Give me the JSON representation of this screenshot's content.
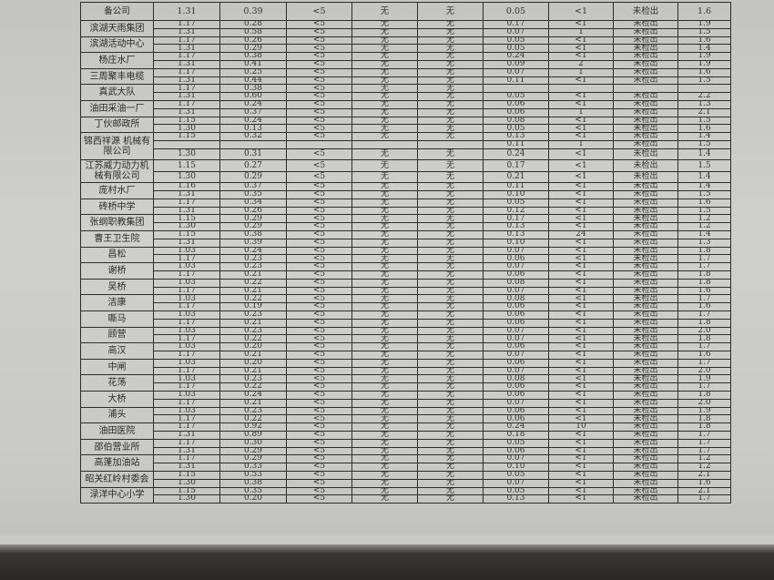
{
  "groups": [
    {
      "name": "备公司",
      "rows": [
        [
          "1.31",
          "0.39",
          "<5",
          "无",
          "无",
          "0.05",
          "<1",
          "未检出",
          "1.6"
        ]
      ],
      "head": true
    },
    {
      "name": "滨湖天雨集团",
      "rows": [
        [
          "1.17",
          "0.28",
          "<5",
          "无",
          "无",
          "0.17",
          "<1",
          "未检出",
          "1.9"
        ],
        [
          "1.31",
          "0.58",
          "<5",
          "无",
          "无",
          "0.07",
          "1",
          "未检出",
          "1.5"
        ]
      ]
    },
    {
      "name": "滨湖活动中心",
      "rows": [
        [
          "1.17",
          "0.26",
          "<5",
          "无",
          "无",
          "0.05",
          "<1",
          "未检出",
          "1.6"
        ],
        [
          "1.31",
          "0.29",
          "<5",
          "无",
          "无",
          "0.05",
          "<1",
          "未检出",
          "1.4"
        ]
      ]
    },
    {
      "name": "杨庄水厂",
      "rows": [
        [
          "1.17",
          "0.38",
          "<5",
          "无",
          "无",
          "0.24",
          "<1",
          "未检出",
          "1.9"
        ],
        [
          "1.31",
          "0.41",
          "<5",
          "无",
          "无",
          "0.09",
          "2",
          "未检出",
          "1.9"
        ]
      ]
    },
    {
      "name": "三周聚丰电缆",
      "rows": [
        [
          "1.17",
          "0.25",
          "<5",
          "无",
          "无",
          "0.07",
          "1",
          "未检出",
          "1.6"
        ],
        [
          "1.31",
          "0.44",
          "<5",
          "无",
          "无",
          "0.11",
          "<1",
          "未检出",
          "1.5"
        ]
      ]
    },
    {
      "name": "真武大队",
      "rows": [
        [
          "1.17",
          "0.38",
          "<5",
          "无",
          "无",
          "",
          "",
          "",
          ""
        ],
        [
          "1.31",
          "0.60",
          "<5",
          "无",
          "无",
          "0.05",
          "<1",
          "未检出",
          "2.2"
        ]
      ]
    },
    {
      "name": "油田采油一厂",
      "rows": [
        [
          "1.17",
          "0.24",
          "<5",
          "无",
          "无",
          "0.06",
          "<1",
          "未检出",
          "1.3"
        ],
        [
          "1.31",
          "0.37",
          "<5",
          "无",
          "无",
          "0.06",
          "1",
          "未检出",
          "2.1"
        ]
      ]
    },
    {
      "name": "丁伙邮政所",
      "rows": [
        [
          "1.15",
          "0.24",
          "<5",
          "无",
          "无",
          "0.08",
          "<1",
          "未检出",
          "1.5"
        ],
        [
          "1.30",
          "0.13",
          "<5",
          "无",
          "无",
          "0.05",
          "<1",
          "未检出",
          "1.6"
        ]
      ]
    },
    {
      "name": "锦西祥源 机械有限公司",
      "rows": [
        [
          "1.15",
          "0.32",
          "<5",
          "无",
          "无",
          "0.13",
          "<1",
          "未检出",
          "1.4"
        ],
        [
          "",
          "",
          "",
          "",
          "",
          "0.11",
          "1",
          "未检出",
          "1.5"
        ],
        [
          "1.30",
          "0.31",
          "<5",
          "无",
          "无",
          "0.24",
          "<1",
          "未检出",
          "1.4"
        ]
      ],
      "tall": [
        2
      ]
    },
    {
      "name": "江苏威力动力机械有限公司",
      "rows": [
        [
          "1.15",
          "0.27",
          "<5",
          "无",
          "无",
          "0.17",
          "<1",
          "未检出",
          "1.5"
        ],
        [
          "1.30",
          "0.29",
          "<5",
          "无",
          "无",
          "0.21",
          "<1",
          "未检出",
          "1.4"
        ]
      ],
      "tall": [
        0,
        1
      ]
    },
    {
      "name": "庞村水厂",
      "rows": [
        [
          "1.16",
          "0.37",
          "<5",
          "无",
          "无",
          "0.11",
          "<1",
          "未检出",
          "1.4"
        ],
        [
          "1.31",
          "0.35",
          "<5",
          "无",
          "无",
          "0.10",
          "<1",
          "未检出",
          "1.5"
        ]
      ]
    },
    {
      "name": "砖桥中学",
      "rows": [
        [
          "1.17",
          "0.34",
          "<5",
          "无",
          "无",
          "0.05",
          "<1",
          "未检出",
          "1.6"
        ],
        [
          "1.31",
          "0.26",
          "<5",
          "无",
          "无",
          "0.12",
          "<1",
          "未检出",
          "1.5"
        ]
      ]
    },
    {
      "name": "张纲职教集团",
      "rows": [
        [
          "1.15",
          "0.29",
          "<5",
          "无",
          "无",
          "0.17",
          "<1",
          "未检出",
          "1.2"
        ],
        [
          "1.30",
          "0.29",
          "<5",
          "无",
          "无",
          "0.13",
          "<1",
          "未检出",
          "1.2"
        ]
      ]
    },
    {
      "name": "曹王卫生院",
      "rows": [
        [
          "1.15",
          "0.38",
          "<5",
          "无",
          "无",
          "0.13",
          "24",
          "未检出",
          "1.4"
        ],
        [
          "1.31",
          "0.39",
          "<5",
          "无",
          "无",
          "0.10",
          "<1",
          "未检出",
          "1.3"
        ]
      ]
    },
    {
      "name": "昌松",
      "rows": [
        [
          "1.03",
          "0.24",
          "<5",
          "无",
          "无",
          "0.07",
          "<1",
          "未检出",
          "1.8"
        ],
        [
          "1.17",
          "0.23",
          "<5",
          "无",
          "无",
          "0.06",
          "<1",
          "未检出",
          "1.7"
        ]
      ]
    },
    {
      "name": "谢桥",
      "rows": [
        [
          "1.03",
          "0.23",
          "<5",
          "无",
          "无",
          "0.07",
          "<1",
          "未检出",
          "1.7"
        ],
        [
          "1.17",
          "0.21",
          "<5",
          "无",
          "无",
          "0.06",
          "<1",
          "未检出",
          "1.8"
        ]
      ]
    },
    {
      "name": "吴桥",
      "rows": [
        [
          "1.03",
          "0.22",
          "<5",
          "无",
          "无",
          "0.08",
          "<1",
          "未检出",
          "1.8"
        ],
        [
          "1.17",
          "0.21",
          "<5",
          "无",
          "无",
          "0.07",
          "<1",
          "未检出",
          "1.6"
        ]
      ]
    },
    {
      "name": "洁康",
      "rows": [
        [
          "1.03",
          "0.22",
          "<5",
          "无",
          "无",
          "0.08",
          "<1",
          "未检出",
          "1.7"
        ],
        [
          "1.17",
          "0.19",
          "<5",
          "无",
          "无",
          "0.06",
          "<1",
          "未检出",
          "1.6"
        ]
      ]
    },
    {
      "name": "嘶马",
      "rows": [
        [
          "1.03",
          "0.23",
          "<5",
          "无",
          "无",
          "0.06",
          "<1",
          "未检出",
          "1.7"
        ],
        [
          "1.17",
          "0.21",
          "<5",
          "无",
          "无",
          "0.06",
          "<1",
          "未检出",
          "1.8"
        ]
      ]
    },
    {
      "name": "顾营",
      "rows": [
        [
          "1.03",
          "0.23",
          "<5",
          "无",
          "无",
          "0.07",
          "<1",
          "未检出",
          "2.0"
        ],
        [
          "1.17",
          "0.22",
          "<5",
          "无",
          "无",
          "0.07",
          "<1",
          "未检出",
          "1.8"
        ]
      ]
    },
    {
      "name": "高汉",
      "rows": [
        [
          "1.03",
          "0.20",
          "<5",
          "无",
          "无",
          "0.06",
          "<1",
          "未检出",
          "1.7"
        ],
        [
          "1.17",
          "0.21",
          "<5",
          "无",
          "无",
          "0.07",
          "<1",
          "未检出",
          "1.6"
        ]
      ]
    },
    {
      "name": "中闸",
      "rows": [
        [
          "1.03",
          "0.20",
          "<5",
          "无",
          "无",
          "0.06",
          "<1",
          "未检出",
          "1.7"
        ],
        [
          "1.17",
          "0.21",
          "<5",
          "无",
          "无",
          "0.07",
          "<1",
          "未检出",
          "2.0"
        ]
      ]
    },
    {
      "name": "花荡",
      "rows": [
        [
          "1.03",
          "0.23",
          "<5",
          "无",
          "无",
          "0.08",
          "<1",
          "未检出",
          "1.9"
        ],
        [
          "1.17",
          "0.22",
          "<5",
          "无",
          "无",
          "0.06",
          "<1",
          "未检出",
          "1.7"
        ]
      ]
    },
    {
      "name": "大桥",
      "rows": [
        [
          "1.03",
          "0.24",
          "<5",
          "无",
          "无",
          "0.06",
          "<1",
          "未检出",
          "1.8"
        ],
        [
          "1.17",
          "0.21",
          "<5",
          "无",
          "无",
          "0.07",
          "<1",
          "未检出",
          "2.0"
        ]
      ]
    },
    {
      "name": "浦头",
      "rows": [
        [
          "1.03",
          "0.23",
          "<5",
          "无",
          "无",
          "0.06",
          "<1",
          "未检出",
          "1.9"
        ],
        [
          "1.17",
          "0.22",
          "<5",
          "无",
          "无",
          "0.06",
          "<1",
          "未检出",
          "1.8"
        ]
      ]
    },
    {
      "name": "油田医院",
      "rows": [
        [
          "1.17",
          "0.92",
          "<5",
          "无",
          "无",
          "0.24",
          "10",
          "未检出",
          "1.8"
        ],
        [
          "1.31",
          "0.89",
          "<5",
          "无",
          "无",
          "0.18",
          "<1",
          "未检出",
          "1.7"
        ]
      ]
    },
    {
      "name": "邵伯营业所",
      "rows": [
        [
          "1.17",
          "0.30",
          "<5",
          "无",
          "无",
          "0.05",
          "<1",
          "未检出",
          "1.7"
        ],
        [
          "1.31",
          "0.29",
          "<5",
          "无",
          "无",
          "0.06",
          "<1",
          "未检出",
          "1.7"
        ]
      ]
    },
    {
      "name": "高蓬加油站",
      "rows": [
        [
          "1.17",
          "0.29",
          "<5",
          "无",
          "无",
          "0.07",
          "<1",
          "未检出",
          "1.2"
        ],
        [
          "1.31",
          "0.33",
          "<5",
          "无",
          "无",
          "0.10",
          "<1",
          "未检出",
          "1.2"
        ]
      ]
    },
    {
      "name": "昭关红岭村委会",
      "rows": [
        [
          "1.15",
          "0.53",
          "<5",
          "无",
          "无",
          "0.05",
          "<1",
          "未检出",
          "2.1"
        ],
        [
          "1.30",
          "0.38",
          "<5",
          "无",
          "无",
          "0.07",
          "<1",
          "未检出",
          "1.6"
        ]
      ]
    },
    {
      "name": "渌洋中心小学",
      "rows": [
        [
          "1.15",
          "0.35",
          "<5",
          "无",
          "无",
          "0.05",
          "<1",
          "未检出",
          "2.1"
        ],
        [
          "1.30",
          "0.20",
          "<5",
          "无",
          "无",
          "0.13",
          "<1",
          "未检出",
          "1.7"
        ]
      ]
    }
  ]
}
